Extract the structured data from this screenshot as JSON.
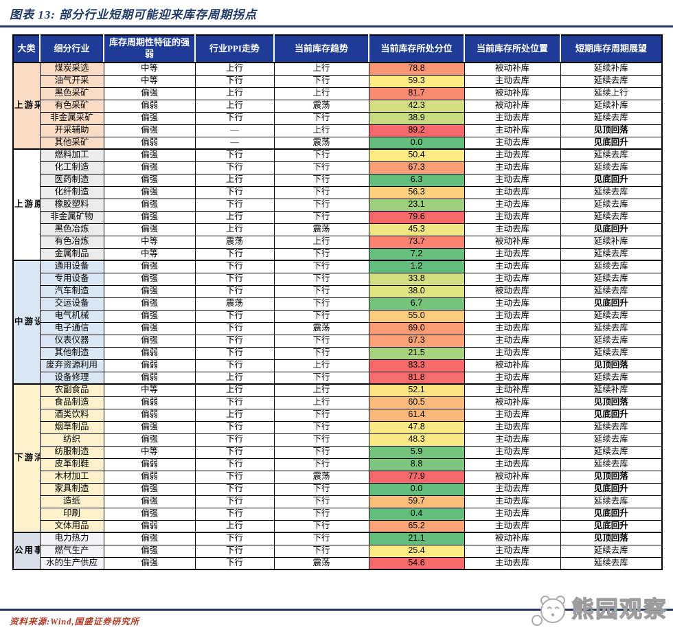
{
  "page_title": "图表 13:  部分行业短期可能迎来库存周期拐点",
  "source_text": "资料来源:Wind,国盛证券研究所",
  "watermark_text": "熊园观察",
  "colors": {
    "header_bg": "#1E3C96",
    "title_navy": "#1F3864",
    "rule_blue": "#1F3864",
    "up_red": "#D13C2A",
    "down_green": "#3FB883",
    "peak_green": "#00A651",
    "bottom_red": "#C00000",
    "scale_min_green": "#63BE7B",
    "scale_mid_yellow": "#FFEB84",
    "scale_max_red": "#F8696B",
    "source_red": "#B03B26"
  },
  "table": {
    "columns": [
      "大类",
      "细分行业",
      "库存周期性特征的强弱",
      "行业PPI走势",
      "当前库存趋势",
      "当前库存所处分位",
      "当前库存所处位置",
      "短期库存周期展望"
    ],
    "sections": [
      {
        "category": "上游采掘",
        "cat_bg": "#FBDCC5",
        "sub_bg": "#FBDCC5",
        "rows": [
          {
            "industry": "煤炭采选",
            "strength": "中等",
            "strength_tone": "neutral",
            "ppi": "上行",
            "ppi_tone": "up",
            "trend": "上行",
            "trend_tone": "up",
            "pct": "78.8",
            "pct_color": "#FA9674",
            "position": "被动补库",
            "outlook": "延续补库",
            "outlook_tone": "neutral"
          },
          {
            "industry": "油气开采",
            "strength": "中等",
            "strength_tone": "neutral",
            "ppi": "下行",
            "ppi_tone": "down",
            "trend": "下行",
            "trend_tone": "down",
            "pct": "59.3",
            "pct_color": "#FFEB84",
            "position": "主动去库",
            "outlook": "延续去库",
            "outlook_tone": "neutral"
          },
          {
            "industry": "黑色采矿",
            "strength": "偏强",
            "strength_tone": "up",
            "ppi": "上行",
            "ppi_tone": "up",
            "trend": "上行",
            "trend_tone": "up",
            "pct": "81.7",
            "pct_color": "#FA8A71",
            "position": "被动补库",
            "outlook": "延续上行",
            "outlook_tone": "neutral"
          },
          {
            "industry": "有色采矿",
            "strength": "偏弱",
            "strength_tone": "down",
            "ppi": "上行",
            "ppi_tone": "up",
            "trend": "震荡",
            "trend_tone": "neutral",
            "pct": "42.3",
            "pct_color": "#D2DE81",
            "position": "被动补库",
            "outlook": "延续补库",
            "outlook_tone": "neutral"
          },
          {
            "industry": "非金属采矿",
            "strength": "偏强",
            "strength_tone": "up",
            "ppi": "下行",
            "ppi_tone": "down",
            "trend": "下行",
            "trend_tone": "down",
            "pct": "38.9",
            "pct_color": "#C9DB81",
            "position": "主动去库",
            "outlook": "延续去库",
            "outlook_tone": "neutral"
          },
          {
            "industry": "开采辅助",
            "strength": "偏强",
            "strength_tone": "up",
            "ppi": "—",
            "ppi_tone": "neutral",
            "trend": "上行",
            "trend_tone": "up",
            "pct": "89.2",
            "pct_color": "#F8696B",
            "position": "主动补库",
            "outlook": "见顶回落",
            "outlook_tone": "peak"
          },
          {
            "industry": "其他采矿",
            "strength": "偏弱",
            "strength_tone": "down",
            "ppi": "—",
            "ppi_tone": "neutral",
            "trend": "震荡",
            "trend_tone": "neutral",
            "pct": "0.0",
            "pct_color": "#63BE7B",
            "position": "主动去库",
            "outlook": "见底回升",
            "outlook_tone": "bottom"
          }
        ]
      },
      {
        "category": "上游原材料",
        "cat_bg": "#FFFFFF",
        "sub_bg": "#ECECEC",
        "rows": [
          {
            "industry": "燃料加工",
            "strength": "偏强",
            "strength_tone": "up",
            "ppi": "下行",
            "ppi_tone": "down",
            "trend": "下行",
            "trend_tone": "down",
            "pct": "50.4",
            "pct_color": "#FFEB84",
            "position": "主动去库",
            "outlook": "延续去库",
            "outlook_tone": "neutral"
          },
          {
            "industry": "化工制造",
            "strength": "偏强",
            "strength_tone": "up",
            "ppi": "下行",
            "ppi_tone": "down",
            "trend": "下行",
            "trend_tone": "down",
            "pct": "67.3",
            "pct_color": "#FBA075",
            "position": "主动去库",
            "outlook": "延续去库",
            "outlook_tone": "neutral"
          },
          {
            "industry": "医药制造",
            "strength": "偏强",
            "strength_tone": "up",
            "ppi": "上行",
            "ppi_tone": "up",
            "trend": "下行",
            "trend_tone": "down",
            "pct": "6.3",
            "pct_color": "#63BE7B",
            "position": "主动去库",
            "outlook": "见底回升",
            "outlook_tone": "bottom"
          },
          {
            "industry": "化纤制造",
            "strength": "偏强",
            "strength_tone": "up",
            "ppi": "下行",
            "ppi_tone": "down",
            "trend": "下行",
            "trend_tone": "down",
            "pct": "56.3",
            "pct_color": "#FDD17F",
            "position": "主动去库",
            "outlook": "延续去库",
            "outlook_tone": "neutral"
          },
          {
            "industry": "橡胶塑料",
            "strength": "偏强",
            "strength_tone": "up",
            "ppi": "下行",
            "ppi_tone": "down",
            "trend": "下行",
            "trend_tone": "down",
            "pct": "23.1",
            "pct_color": "#9ECF7E",
            "position": "主动去库",
            "outlook": "延续去库",
            "outlook_tone": "neutral"
          },
          {
            "industry": "非金属矿物",
            "strength": "偏强",
            "strength_tone": "up",
            "ppi": "上行",
            "ppi_tone": "up",
            "trend": "下行",
            "trend_tone": "down",
            "pct": "79.6",
            "pct_color": "#F8696B",
            "position": "主动去库",
            "outlook": "延续去库",
            "outlook_tone": "neutral"
          },
          {
            "industry": "黑色冶炼",
            "strength": "偏强",
            "strength_tone": "up",
            "ppi": "上行",
            "ppi_tone": "up",
            "trend": "震荡",
            "trend_tone": "neutral",
            "pct": "45.3",
            "pct_color": "#EDE683",
            "position": "主动去库",
            "outlook": "见底回升",
            "outlook_tone": "bottom"
          },
          {
            "industry": "有色冶炼",
            "strength": "中等",
            "strength_tone": "neutral",
            "ppi": "震荡",
            "ppi_tone": "neutral",
            "trend": "上行",
            "trend_tone": "up",
            "pct": "73.7",
            "pct_color": "#F98370",
            "position": "被动补库",
            "outlook": "延续补库",
            "outlook_tone": "neutral"
          },
          {
            "industry": "金属制品",
            "strength": "中等",
            "strength_tone": "neutral",
            "ppi": "下行",
            "ppi_tone": "down",
            "trend": "下行",
            "trend_tone": "down",
            "pct": "7.2",
            "pct_color": "#66BF7B",
            "position": "主动去库",
            "outlook": "延续去库",
            "outlook_tone": "neutral"
          }
        ]
      },
      {
        "category": "中游设备制造",
        "cat_bg": "#DAE8F5",
        "sub_bg": "#DAE8F5",
        "rows": [
          {
            "industry": "通用设备",
            "strength": "偏强",
            "strength_tone": "up",
            "ppi": "下行",
            "ppi_tone": "down",
            "trend": "下行",
            "trend_tone": "down",
            "pct": "1.2",
            "pct_color": "#63BE7B",
            "position": "主动去库",
            "outlook": "延续去库",
            "outlook_tone": "neutral"
          },
          {
            "industry": "专用设备",
            "strength": "偏强",
            "strength_tone": "up",
            "ppi": "下行",
            "ppi_tone": "down",
            "trend": "下行",
            "trend_tone": "down",
            "pct": "33.8",
            "pct_color": "#D3DE82",
            "position": "主动去库",
            "outlook": "延续去库",
            "outlook_tone": "neutral"
          },
          {
            "industry": "汽车制造",
            "strength": "偏强",
            "strength_tone": "up",
            "ppi": "下行",
            "ppi_tone": "down",
            "trend": "下行",
            "trend_tone": "down",
            "pct": "38.0",
            "pct_color": "#E2E382",
            "position": "被动去库",
            "outlook": "延续去库",
            "outlook_tone": "neutral"
          },
          {
            "industry": "交运设备",
            "strength": "偏强",
            "strength_tone": "up",
            "ppi": "震荡",
            "ppi_tone": "neutral",
            "trend": "下行",
            "trend_tone": "down",
            "pct": "6.7",
            "pct_color": "#76C37C",
            "position": "主动去库",
            "outlook": "见底回升",
            "outlook_tone": "bottom"
          },
          {
            "industry": "电气机械",
            "strength": "偏强",
            "strength_tone": "up",
            "ppi": "下行",
            "ppi_tone": "down",
            "trend": "下行",
            "trend_tone": "down",
            "pct": "55.0",
            "pct_color": "#FDCD7E",
            "position": "主动去库",
            "outlook": "延续去库",
            "outlook_tone": "neutral"
          },
          {
            "industry": "电子通信",
            "strength": "偏强",
            "strength_tone": "up",
            "ppi": "下行",
            "ppi_tone": "down",
            "trend": "震荡",
            "trend_tone": "neutral",
            "pct": "69.0",
            "pct_color": "#FB9C75",
            "position": "主动去库",
            "outlook": "延续去库",
            "outlook_tone": "neutral"
          },
          {
            "industry": "仪表仪器",
            "strength": "偏强",
            "strength_tone": "up",
            "ppi": "下行",
            "ppi_tone": "down",
            "trend": "下行",
            "trend_tone": "down",
            "pct": "67.3",
            "pct_color": "#FBA276",
            "position": "主动去库",
            "outlook": "延续去库",
            "outlook_tone": "neutral"
          },
          {
            "industry": "其他制造",
            "strength": "偏弱",
            "strength_tone": "down",
            "ppi": "下行",
            "ppi_tone": "down",
            "trend": "下行",
            "trend_tone": "down",
            "pct": "21.5",
            "pct_color": "#A9D27F",
            "position": "主动去库",
            "outlook": "延续去库",
            "outlook_tone": "neutral"
          },
          {
            "industry": "废弃资源利用",
            "strength": "偏弱",
            "strength_tone": "down",
            "ppi": "下行",
            "ppi_tone": "down",
            "trend": "上行",
            "trend_tone": "up",
            "pct": "83.3",
            "pct_color": "#F8696B",
            "position": "被动补库",
            "outlook": "见顶回落",
            "outlook_tone": "peak"
          },
          {
            "industry": "设备修理",
            "strength": "偏弱",
            "strength_tone": "down",
            "ppi": "上行",
            "ppi_tone": "up",
            "trend": "下行",
            "trend_tone": "down",
            "pct": "81.8",
            "pct_color": "#F86E6C",
            "position": "主动去库",
            "outlook": "延续去库",
            "outlook_tone": "neutral"
          }
        ]
      },
      {
        "category": "下游消费",
        "cat_bg": "#FDF2CC",
        "sub_bg": "#FDF2CC",
        "rows": [
          {
            "industry": "农副食品",
            "strength": "中等",
            "strength_tone": "neutral",
            "ppi": "上行",
            "ppi_tone": "up",
            "trend": "上行",
            "trend_tone": "up",
            "pct": "52.1",
            "pct_color": "#FEE282",
            "position": "主动补库",
            "outlook": "延续补库",
            "outlook_tone": "neutral"
          },
          {
            "industry": "食品制造",
            "strength": "偏弱",
            "strength_tone": "down",
            "ppi": "下行",
            "ppi_tone": "down",
            "trend": "上行",
            "trend_tone": "up",
            "pct": "60.5",
            "pct_color": "#FCBB7B",
            "position": "被动补库",
            "outlook": "见顶回落",
            "outlook_tone": "peak"
          },
          {
            "industry": "酒类饮料",
            "strength": "偏弱",
            "strength_tone": "down",
            "ppi": "上行",
            "ppi_tone": "up",
            "trend": "下行",
            "trend_tone": "down",
            "pct": "61.4",
            "pct_color": "#FCB77A",
            "position": "主动去库",
            "outlook": "见底回升",
            "outlook_tone": "bottom"
          },
          {
            "industry": "烟草制品",
            "strength": "偏强",
            "strength_tone": "up",
            "ppi": "下行",
            "ppi_tone": "down",
            "trend": "下行",
            "trend_tone": "down",
            "pct": "47.8",
            "pct_color": "#F8E984",
            "position": "主动去库",
            "outlook": "延续去库",
            "outlook_tone": "neutral"
          },
          {
            "industry": "纺织",
            "strength": "偏强",
            "strength_tone": "up",
            "ppi": "下行",
            "ppi_tone": "down",
            "trend": "下行",
            "trend_tone": "down",
            "pct": "48.3",
            "pct_color": "#F9E984",
            "position": "主动去库",
            "outlook": "延续去库",
            "outlook_tone": "neutral"
          },
          {
            "industry": "纺服制造",
            "strength": "中等",
            "strength_tone": "neutral",
            "ppi": "下行",
            "ppi_tone": "down",
            "trend": "下行",
            "trend_tone": "down",
            "pct": "5.9",
            "pct_color": "#75C37C",
            "position": "主动去库",
            "outlook": "延续去库",
            "outlook_tone": "neutral"
          },
          {
            "industry": "皮革制鞋",
            "strength": "偏弱",
            "strength_tone": "down",
            "ppi": "下行",
            "ppi_tone": "down",
            "trend": "下行",
            "trend_tone": "down",
            "pct": "8.8",
            "pct_color": "#7EC67D",
            "position": "主动去库",
            "outlook": "延续去库",
            "outlook_tone": "neutral"
          },
          {
            "industry": "木材加工",
            "strength": "偏弱",
            "strength_tone": "down",
            "ppi": "下行",
            "ppi_tone": "down",
            "trend": "震荡",
            "trend_tone": "neutral",
            "pct": "77.9",
            "pct_color": "#F8696B",
            "position": "被动补库",
            "outlook": "见顶回落",
            "outlook_tone": "peak"
          },
          {
            "industry": "家具制造",
            "strength": "偏强",
            "strength_tone": "up",
            "ppi": "下行",
            "ppi_tone": "down",
            "trend": "下行",
            "trend_tone": "down",
            "pct": "0.0",
            "pct_color": "#63BE7B",
            "position": "主动去库",
            "outlook": "见底回升",
            "outlook_tone": "bottom"
          },
          {
            "industry": "造纸",
            "strength": "偏强",
            "strength_tone": "up",
            "ppi": "下行",
            "ppi_tone": "down",
            "trend": "下行",
            "trend_tone": "down",
            "pct": "59.7",
            "pct_color": "#FDBE7B",
            "position": "主动去库",
            "outlook": "延续去库",
            "outlook_tone": "neutral"
          },
          {
            "industry": "印刷",
            "strength": "偏强",
            "strength_tone": "up",
            "ppi": "下行",
            "ppi_tone": "down",
            "trend": "下行",
            "trend_tone": "down",
            "pct": "0.4",
            "pct_color": "#64BE7B",
            "position": "主动去库",
            "outlook": "见底回升",
            "outlook_tone": "bottom"
          },
          {
            "industry": "文体用品",
            "strength": "偏弱",
            "strength_tone": "down",
            "ppi": "上行",
            "ppi_tone": "up",
            "trend": "下行",
            "trend_tone": "down",
            "pct": "65.2",
            "pct_color": "#FBA576",
            "position": "主动去库",
            "outlook": "见底回升",
            "outlook_tone": "bottom"
          }
        ]
      },
      {
        "category": "公用事业",
        "cat_bg": "#D9DFEA",
        "sub_bg": "#F2F4F9",
        "rows": [
          {
            "industry": "电力热力",
            "strength": "偏强",
            "strength_tone": "up",
            "ppi": "下行",
            "ppi_tone": "down",
            "trend": "下行",
            "trend_tone": "down",
            "pct": "21.1",
            "pct_color": "#63BE7B",
            "position": "被动补库",
            "outlook": "见顶回落",
            "outlook_tone": "peak"
          },
          {
            "industry": "燃气生产",
            "strength": "偏强",
            "strength_tone": "up",
            "ppi": "下行",
            "ppi_tone": "down",
            "trend": "下行",
            "trend_tone": "down",
            "pct": "25.4",
            "pct_color": "#FFEB84",
            "position": "主动去库",
            "outlook": "延续去库",
            "outlook_tone": "neutral"
          },
          {
            "industry": "水的生产供应",
            "strength": "偏强",
            "strength_tone": "up",
            "ppi": "下行",
            "ppi_tone": "down",
            "trend": "震荡",
            "trend_tone": "neutral",
            "pct": "54.6",
            "pct_color": "#F8696B",
            "position": "主动去库",
            "outlook": "延续去库",
            "outlook_tone": "neutral"
          }
        ]
      }
    ]
  }
}
